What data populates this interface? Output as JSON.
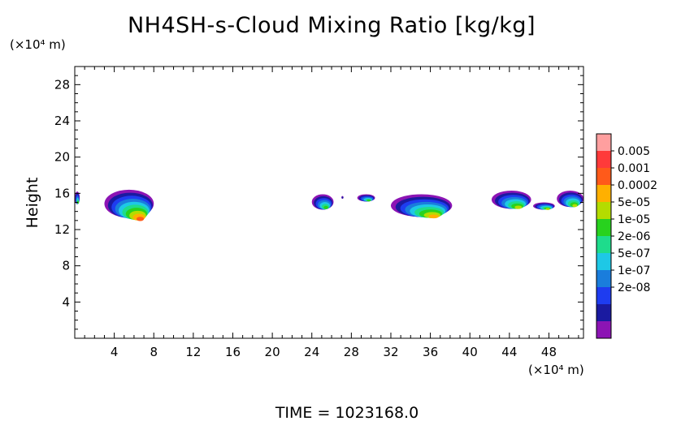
{
  "chart_data": {
    "type": "heatmap",
    "title": "NH4SH-s-Cloud Mixing Ratio [kg/kg]",
    "xlabel": "",
    "ylabel": "Height",
    "x_unit": "(×10⁴ m)",
    "y_unit": "(×10⁴ m)",
    "xlim": [
      0,
      51.5
    ],
    "ylim": [
      0,
      30
    ],
    "x_ticks": [
      4,
      8,
      12,
      16,
      20,
      24,
      28,
      32,
      36,
      40,
      44,
      48
    ],
    "y_ticks": [
      4,
      8,
      12,
      16,
      20,
      24,
      28
    ],
    "colorbar": {
      "labels": [
        "0.005",
        "0.001",
        "0.0002",
        "5e-05",
        "1e-05",
        "2e-06",
        "5e-07",
        "1e-07",
        "2e-08"
      ],
      "colors": [
        "#ff9f9f",
        "#ff3a3a",
        "#ff5a1a",
        "#ffb000",
        "#b4dc00",
        "#28d21e",
        "#1edc8c",
        "#1ec8e6",
        "#1a7ddc",
        "#1e3cf0",
        "#1a1aa0",
        "#8c14b4"
      ]
    },
    "clouds": [
      {
        "region": "x 0.0-0.5",
        "x": [
          0.0,
          0.5
        ],
        "y": [
          14.8,
          16.2
        ],
        "peak": "1e-05"
      },
      {
        "region": "x 3-8",
        "x": [
          3.0,
          8.0
        ],
        "y": [
          13.3,
          16.4
        ],
        "peak": "0.001"
      },
      {
        "region": "x 24-26",
        "x": [
          24.0,
          26.2
        ],
        "y": [
          14.2,
          15.9
        ],
        "peak": "1e-05"
      },
      {
        "region": "x 27",
        "x": [
          27.0,
          27.2
        ],
        "y": [
          15.4,
          15.7
        ],
        "peak": "2e-08"
      },
      {
        "region": "x 28.6-30",
        "x": [
          28.6,
          30.4
        ],
        "y": [
          15.1,
          15.9
        ],
        "peak": "1e-05"
      },
      {
        "region": "x 32-38",
        "x": [
          32.0,
          38.2
        ],
        "y": [
          13.4,
          15.9
        ],
        "peak": "0.0002"
      },
      {
        "region": "x 42-46",
        "x": [
          42.2,
          46.2
        ],
        "y": [
          14.3,
          16.3
        ],
        "peak": "5e-05"
      },
      {
        "region": "x 46-49",
        "x": [
          46.4,
          48.6
        ],
        "y": [
          14.2,
          15.0
        ],
        "peak": "5e-05"
      },
      {
        "region": "x 48-51",
        "x": [
          48.8,
          51.5
        ],
        "y": [
          14.5,
          16.3
        ],
        "peak": "5e-05"
      }
    ]
  },
  "footer": {
    "time_label": "TIME = 1023168.0"
  }
}
